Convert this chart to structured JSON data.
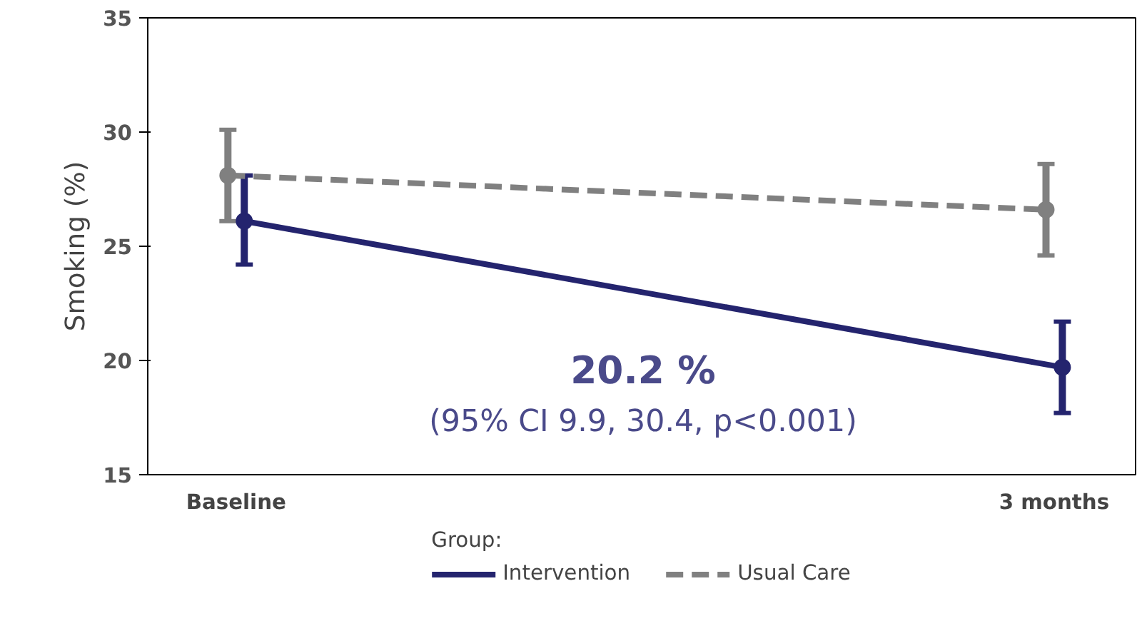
{
  "chart_data": {
    "type": "line",
    "ylabel": "Smoking (%)",
    "legend_title": "Group:",
    "categories": [
      "Baseline",
      "3 months"
    ],
    "series": [
      {
        "name": "Intervention",
        "color": "#24246e",
        "values": [
          26.1,
          19.7
        ],
        "errors": [
          [
            24.2,
            28.1
          ],
          [
            17.7,
            21.7
          ]
        ],
        "line_style": "solid"
      },
      {
        "name": "Usual Care",
        "color": "#808080",
        "values": [
          28.1,
          26.6
        ],
        "errors": [
          [
            26.1,
            30.1
          ],
          [
            24.6,
            28.6
          ]
        ],
        "line_style": "dashed"
      }
    ],
    "ylim": [
      15,
      35
    ],
    "yticks": [
      15,
      20,
      25,
      30,
      35
    ],
    "grid": false,
    "legend": "bottom",
    "marker": "circle",
    "annotations": [
      "20.2 %",
      "(95% CI 9.9, 30.4, p<0.001)"
    ]
  }
}
